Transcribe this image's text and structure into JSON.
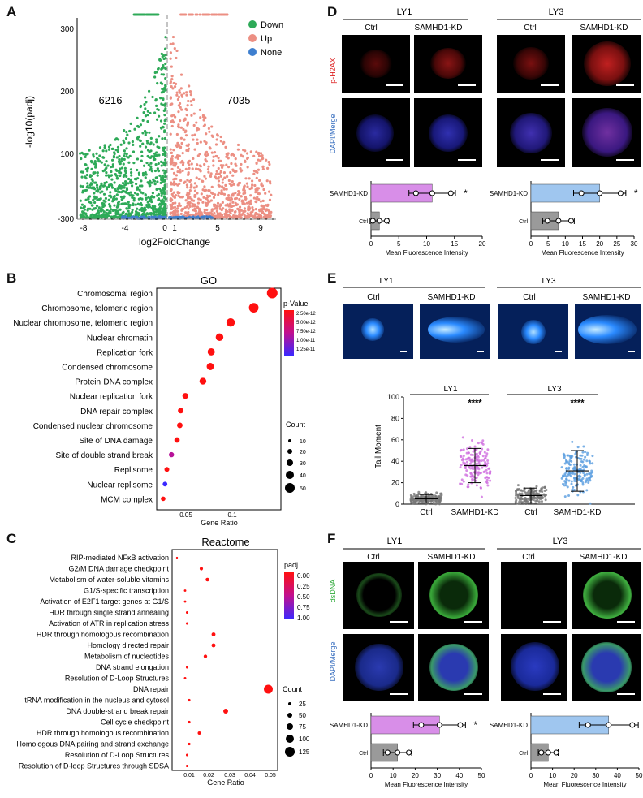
{
  "panel_letters": {
    "a": "A",
    "b": "B",
    "c": "C",
    "d": "D",
    "e": "E",
    "f": "F"
  },
  "colors": {
    "down": "#2eaa58",
    "up": "#ec8f83",
    "none": "#3e7fcf",
    "purple": "#d88ee8",
    "blue": "#9fc6ef",
    "grey": "#9a9a9a"
  },
  "panelA": {
    "ylabel": "-log10(padj)",
    "xlabel": "log2FoldChange",
    "xticks": [
      "-8",
      "-4",
      "0",
      "1",
      "5",
      "9"
    ],
    "yticks": [
      "300",
      "200",
      "100",
      "-300"
    ],
    "down_count": "6216",
    "up_count": "7035",
    "legend": [
      "Down",
      "Up",
      "None"
    ]
  },
  "panelB": {
    "title": "GO",
    "xlabel": "Gene Ratio",
    "xticks": [
      "0.05",
      "0.1"
    ],
    "color_title": "p-Value",
    "color_ticks": [
      "2.50e-12",
      "5.00e-12",
      "7.50e-12",
      "1.00e-11",
      "1.25e-11"
    ],
    "size_title": "Count",
    "size_ticks": [
      "10",
      "20",
      "30",
      "40",
      "50"
    ],
    "terms": [
      "Chromosomal region",
      "Chromosome, telomeric region",
      "Nuclear chromosome, telomeric region",
      "Nuclear chromatin",
      "Replication fork",
      "Condensed chromosome",
      "Protein-DNA complex",
      "Nuclear replication fork",
      "DNA repair complex",
      "Condensed nuclear chromosome",
      "Site of DNA damage",
      "Site of double strand break",
      "Replisome",
      "Nuclear replisome",
      "MCM complex"
    ]
  },
  "panelC": {
    "title": "Reactome",
    "xlabel": "Gene Ratio",
    "xticks": [
      "0.01",
      "0.02",
      "0.03",
      "0.04",
      "0.05"
    ],
    "color_title": "padj",
    "color_ticks": [
      "0.00",
      "0.25",
      "0.50",
      "0.75",
      "1.00"
    ],
    "size_title": "Count",
    "size_ticks": [
      "25",
      "50",
      "75",
      "100",
      "125"
    ],
    "terms": [
      "RIP-mediated NFκB activation",
      "G2/M DNA damage checkpoint",
      "Metabolism of water-soluble vitamins",
      "G1/S-specific transcription",
      "Activation of E2F1 target genes at G1/S",
      "HDR through single strand annealing",
      "Activation of ATR in replication stress",
      "HDR through homologous recombination",
      "Homology directed repair",
      "Metabolism of nucleotides",
      "DNA strand elongation",
      "Resolution of D-Loop Structures",
      "DNA repair",
      "tRNA modification in the nucleus and cytosol",
      "DNA double-strand break repair",
      "Cell cycle checkpoint",
      "HDR through homologous recombination",
      "Homologous DNA pairing and strand exchange",
      "Resolution of D-Loop Structures",
      "Resolution of D-loop Structures through SDSA"
    ]
  },
  "panelD": {
    "groups": [
      "LY1",
      "LY3"
    ],
    "cols": [
      "Ctrl",
      "SAMHD1-KD"
    ],
    "row1": "p-H2AX",
    "row2": "DAPI/Merge",
    "bar_labels": [
      "SAMHD1-KD",
      "Ctrl"
    ],
    "xlabel": "Mean Fluorescence Intensity",
    "xticks1": [
      "0",
      "5",
      "10",
      "15",
      "20"
    ],
    "xticks2": [
      "0",
      "5",
      "10",
      "15",
      "20",
      "25",
      "30"
    ],
    "sig": "*"
  },
  "panelE": {
    "groups": [
      "LY1",
      "LY3"
    ],
    "cols": [
      "Ctrl",
      "SAMHD1-KD"
    ],
    "ylabel": "Tail Moment",
    "yticks": [
      "0",
      "20",
      "40",
      "60",
      "80",
      "100"
    ],
    "xcats": [
      "Ctrl",
      "SAMHD1-KD",
      "Ctrl",
      "SAMHD1-KD"
    ],
    "sig": "****"
  },
  "panelF": {
    "groups": [
      "LY1",
      "LY3"
    ],
    "cols": [
      "Ctrl",
      "SAMHD1-KD"
    ],
    "row1": "dsDNA",
    "row2": "DAPI/Merge",
    "bar_labels": [
      "SAMHD1-KD",
      "Ctrl"
    ],
    "xlabel": "Mean Fluorescence Intensity",
    "xticks": [
      "0",
      "10",
      "20",
      "30",
      "40",
      "50"
    ],
    "sig": "*"
  },
  "chart_data": [
    {
      "type": "scatter",
      "id": "volcano",
      "xlabel": "log2FoldChange",
      "ylabel": "-log10(padj)",
      "series": [
        {
          "name": "Down",
          "count": 6216
        },
        {
          "name": "Up",
          "count": 7035
        },
        {
          "name": "None"
        }
      ],
      "xlim": [
        -9,
        10.5
      ],
      "legend_position": "top-right"
    },
    {
      "type": "scatter",
      "id": "go_dotplot",
      "xlabel": "Gene Ratio",
      "categories": [
        "Chromosomal region",
        "Chromosome, telomeric region",
        "Nuclear chromosome, telomeric region",
        "Nuclear chromatin",
        "Replication fork",
        "Condensed chromosome",
        "Protein-DNA complex",
        "Nuclear replication fork",
        "DNA repair complex",
        "Condensed nuclear chromosome",
        "Site of DNA damage",
        "Site of double strand break",
        "Replisome",
        "Nuclear replisome",
        "MCM complex"
      ],
      "gene_ratio": [
        0.145,
        0.125,
        0.1,
        0.088,
        0.079,
        0.078,
        0.07,
        0.051,
        0.046,
        0.045,
        0.042,
        0.036,
        0.031,
        0.029,
        0.027
      ],
      "count": [
        50,
        43,
        35,
        30,
        27,
        27,
        24,
        18,
        16,
        16,
        15,
        13,
        11,
        10,
        9
      ],
      "pvalue": [
        1e-13,
        1e-13,
        1e-13,
        1e-13,
        1e-13,
        1e-13,
        1e-13,
        1e-13,
        1e-13,
        1e-13,
        1e-13,
        7e-12,
        1e-13,
        1.3e-11,
        1e-13
      ]
    },
    {
      "type": "scatter",
      "id": "reactome_dotplot",
      "xlabel": "Gene Ratio",
      "categories": [
        "RIP-mediated NFκB activation",
        "G2/M DNA damage checkpoint",
        "Metabolism of water-soluble vitamins",
        "G1/S-specific transcription",
        "Activation of E2F1 target genes at G1/S",
        "HDR through single strand annealing",
        "Activation of ATR in replication stress",
        "HDR through homologous recombination",
        "Homology directed repair",
        "Metabolism of nucleotides",
        "DNA strand elongation",
        "Resolution of D-Loop Structures",
        "DNA repair",
        "tRNA modification in the nucleus and cytosol",
        "DNA double-strand break repair",
        "Cell cycle checkpoint",
        "HDR through homologous recombination",
        "Homologous DNA pairing and strand exchange",
        "Resolution of D-Loop Structures",
        "Resolution of D-loop Structures through SDSA"
      ],
      "gene_ratio": [
        0.004,
        0.016,
        0.019,
        0.008,
        0.008,
        0.009,
        0.009,
        0.022,
        0.022,
        0.018,
        0.009,
        0.008,
        0.049,
        0.01,
        0.028,
        0.01,
        0.015,
        0.01,
        0.009,
        0.009
      ],
      "count": [
        5,
        30,
        35,
        12,
        12,
        15,
        15,
        40,
        40,
        33,
        15,
        13,
        125,
        17,
        55,
        18,
        28,
        17,
        15,
        15
      ],
      "padj": [
        0.0,
        0.0,
        0.0,
        0.0,
        0.0,
        0.0,
        0.0,
        0.0,
        0.0,
        0.0,
        0.0,
        0.0,
        0.0,
        0.0,
        0.0,
        0.0,
        0.0,
        0.0,
        0.0,
        0.0
      ]
    },
    {
      "type": "bar",
      "id": "D_LY1",
      "categories": [
        "SAMHD1-KD",
        "Ctrl"
      ],
      "values": [
        11,
        1.5
      ],
      "xlim": [
        0,
        20
      ]
    },
    {
      "type": "bar",
      "id": "D_LY3",
      "categories": [
        "SAMHD1-KD",
        "Ctrl"
      ],
      "values": [
        20,
        8
      ],
      "xlim": [
        0,
        30
      ]
    },
    {
      "type": "scatter",
      "id": "E_tail_moment",
      "ylabel": "Tail Moment",
      "ylim": [
        0,
        100
      ],
      "categories": [
        "Ctrl",
        "SAMHD1-KD",
        "Ctrl",
        "SAMHD1-KD"
      ],
      "mean": [
        5,
        36,
        8,
        31
      ],
      "sd": [
        4,
        16,
        7,
        19
      ]
    },
    {
      "type": "bar",
      "id": "F_LY1",
      "categories": [
        "SAMHD1-KD",
        "Ctrl"
      ],
      "values": [
        31,
        12
      ],
      "xlim": [
        0,
        50
      ]
    },
    {
      "type": "bar",
      "id": "F_LY3",
      "categories": [
        "SAMHD1-KD",
        "Ctrl"
      ],
      "values": [
        36,
        8
      ],
      "xlim": [
        0,
        50
      ]
    }
  ]
}
